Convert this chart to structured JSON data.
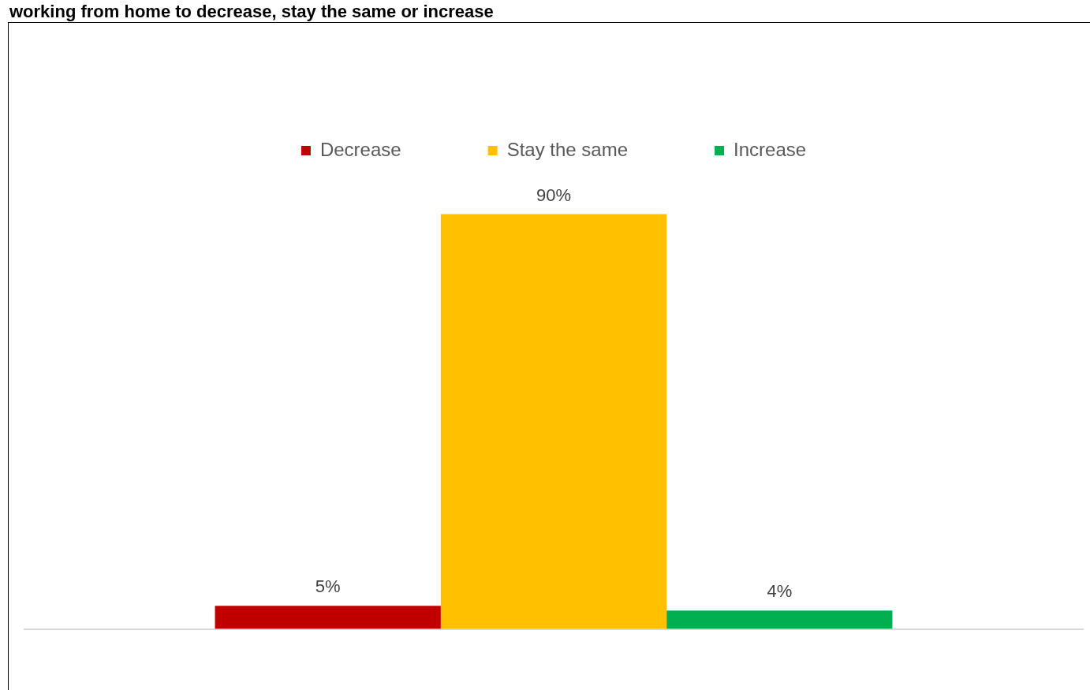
{
  "chart_data": {
    "type": "bar",
    "title": "working from home to decrease, stay the same or increase",
    "categories": [
      null
    ],
    "series": [
      {
        "name": "Decrease",
        "color": "#c00000",
        "values": [
          5
        ],
        "value_labels": [
          "5%"
        ]
      },
      {
        "name": "Stay the same",
        "color": "#ffc000",
        "values": [
          90
        ],
        "value_labels": [
          "90%"
        ]
      },
      {
        "name": "Increase",
        "color": "#00b050",
        "values": [
          4
        ],
        "value_labels": [
          "4%"
        ]
      }
    ],
    "legend": "top",
    "grid": false
  }
}
